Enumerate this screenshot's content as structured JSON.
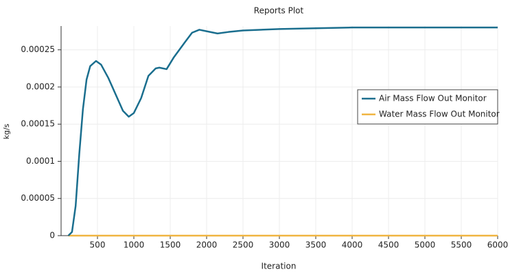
{
  "chart_data": {
    "type": "line",
    "title": "Reports Plot",
    "x_label": "Iteration",
    "y_label": "kg/s",
    "xlim": [
      0,
      6000
    ],
    "xticks": [
      500,
      1000,
      1500,
      2000,
      2500,
      3000,
      3500,
      4000,
      4500,
      5000,
      5500,
      6000
    ],
    "ylim": [
      0,
      0.000282
    ],
    "yticks": [
      0,
      5e-05,
      0.0001,
      0.00015,
      0.0002,
      0.00025
    ],
    "grid": true,
    "legend_position": "right",
    "series": [
      {
        "name": "Air Mass Flow Out Monitor",
        "color": "#1a6e8e",
        "x": [
          100,
          150,
          200,
          250,
          300,
          350,
          400,
          480,
          550,
          650,
          750,
          850,
          930,
          1000,
          1100,
          1200,
          1300,
          1350,
          1450,
          1550,
          1700,
          1800,
          1900,
          2000,
          2150,
          2300,
          2500,
          3000,
          3500,
          4000,
          5000,
          6000
        ],
        "values": [
          0,
          5e-06,
          4e-05,
          0.00011,
          0.00017,
          0.00021,
          0.000228,
          0.000235,
          0.00023,
          0.000212,
          0.00019,
          0.000168,
          0.00016,
          0.000165,
          0.000185,
          0.000215,
          0.000225,
          0.000226,
          0.000224,
          0.00024,
          0.00026,
          0.000273,
          0.000277,
          0.000275,
          0.000272,
          0.000274,
          0.000276,
          0.000278,
          0.000279,
          0.00028,
          0.00028,
          0.00028
        ]
      },
      {
        "name": "Water Mass Flow Out Monitor",
        "color": "#f0b440",
        "x": [
          100,
          6000
        ],
        "values": [
          0,
          0
        ]
      }
    ]
  }
}
